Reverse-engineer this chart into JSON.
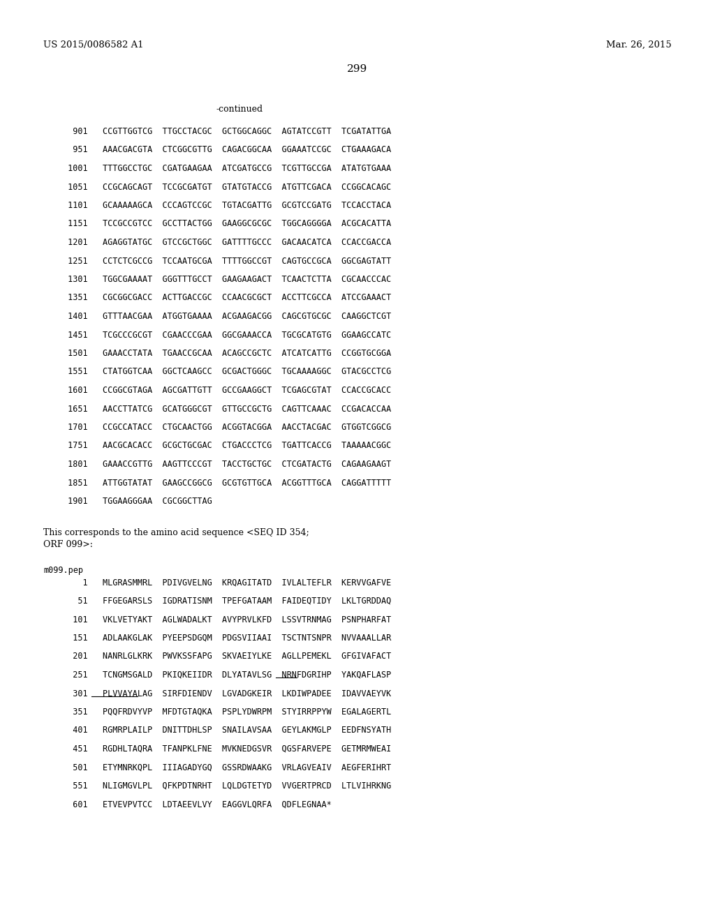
{
  "header_left": "US 2015/0086582 A1",
  "header_right": "Mar. 26, 2015",
  "page_number": "299",
  "continued_label": "-continued",
  "dna_lines": [
    "  901   CCGTTGGTCG  TTGCCTACGC  GCTGGCAGGC  AGTATCCGTT  TCGATATTGA",
    "  951   AAACGACGTA  CTCGGCGTTG  CAGACGGCAA  GGAAATCCGC  CTGAAAGACA",
    " 1001   TTTGGCCTGC  CGATGAAGAA  ATCGATGCCG  TCGTTGCCGA  ATATGTGAAA",
    " 1051   CCGCAGCAGT  TCCGCGATGT  GTATGTACCG  ATGTTCGACA  CCGGCACAGC",
    " 1101   GCAAAAAGCA  CCCAGTCCGC  TGTACGATTG  GCGTCCGATG  TCCACCTACA",
    " 1151   TCCGCCGTCC  GCCTTACTGG  GAAGGCGCGC  TGGCAGGGGA  ACGCACATTA",
    " 1201   AGAGGTATGC  GTCCGCTGGC  GATTTTGCCC  GACAACATCA  CCACCGACCA",
    " 1251   CCTCTCGCCG  TCCAATGCGA  TTTTGGCCGT  CAGTGCCGCA  GGCGAGTATT",
    " 1301   TGGCGAAAAT  GGGTTTGCCT  GAAGAAGACT  TCAACTCTTA  CGCAACCCAC",
    " 1351   CGCGGCGACC  ACTTGACCGC  CCAACGCGCT  ACCTTCGCCA  ATCCGAAACT",
    " 1401   GTTTAACGAA  ATGGTGAAAA  ACGAAGACGG  CAGCGTGCGC  CAAGGCTCGT",
    " 1451   TCGCCCGCGT  CGAACCCGAA  GGCGAAACCA  TGCGCATGTG  GGAAGCCATC",
    " 1501   GAAACCTATA  TGAACCGCAA  ACAGCCGCTC  ATCATCATTG  CCGGTGCGGA",
    " 1551   CTATGGTCAA  GGCTCAAGCC  GCGACTGGGC  TGCAAAAGGC  GTACGCCTCG",
    " 1601   CCGGCGTAGA  AGCGATTGTT  GCCGAAGGCT  TCGAGCGTAT  CCACCGCACC",
    " 1651   AACCTTATCG  GCATGGGCGT  GTTGCCGCTG  CAGTTCAAAC  CCGACACCAA",
    " 1701   CCGCCATACC  CTGCAACTGG  ACGGTACGGA  AACCTACGAC  GTGGTCGGCG",
    " 1751   AACGCACACC  GCGCTGCGAC  CTGACCCTCG  TGATTCACCG  TAAAAACGGC",
    " 1801   GAAACCGTTG  AAGTTCCCGT  TACCTGCTGC  CTCGATACTG  CAGAAGAAGT",
    " 1851   ATTGGTATAT  GAAGCCGGCG  GCGTGTTGCA  ACGGTTTGCA  CAGGATTTTT",
    " 1901   TGGAAGGGAA  CGCGGCTTAG"
  ],
  "text_paragraph": "This corresponds to the amino acid sequence <SEQ ID 354;\nORF 099>:",
  "protein_label": "m099.pep",
  "protein_lines": [
    "    1   MLGRASMMRL  PDIVGVELNG  KRQAGITATD  IVLALTEFLR  KERVVGAFVE",
    "   51   FFGEGARSLS  IGDRATISNM  TPEFGATAAM  FAIDEQTIDY  LKLTGRDDAQ",
    "  101   VKLVETYAKT  AGLWADALKT  AVYPRVLKFD  LSSVTRNMAG  PSNPHARFAT",
    "  151   ADLAAKGLAK  PYEEPSDGQM  PDGSVIIAAI  TSCTNTSNPR  NVVAAALLAR",
    "  201   NANRLGLKRK  PWVKSSFAPG  SKVAEIYLKE  AGLLPEMEKL  GFGIVAFACT",
    "  251   TCNGMSGALD  PKIQKEIIDR  DLYATAVLSG  NRNFDGRIHP  YAKQAFLASP",
    "  301   PLVVAYALAG  SIRFDIENDV  LGVADGKEIR  LKDIWPADEE  IDAVVAEYVK",
    "  351   PQQFRDVYVP  MFDTGTAQKA  PSPLYDWRPM  STYIRRPPYW  EGALAGERTL",
    "  401   RGMRPLAILP  DNITTDHLSP  SNAILAVSAA  GEYLAKMGLP  EEDFNSYATH",
    "  451   RGDHLTAQRA  TFANPKLFNE  MVKNEDGSVR  QGSFARVEPE  GETMRMWEAI",
    "  501   ETYMNRKQPL  IIIAGADYGQ  GSSRDWAAKG  VRLAGVEAIV  AEGFERIHRT",
    "  551   NLIGMGVLPL  QFKPDTNRHT  LQLDGTETYD  VVGERTPRCD  LTLVIHRKNG",
    "  601   ETVEVPVTCC  LDTAEEVLVY  EAGGVLQRFA  QDFLEGNAA*"
  ],
  "underline_251": "AFLASP",
  "underline_301": "PLVVAYALAG SI",
  "background_color": "#ffffff",
  "text_color": "#000000",
  "font_size_header": 9.5,
  "font_size_page": 11,
  "font_size_body": 8.5,
  "font_size_continued": 9.0
}
